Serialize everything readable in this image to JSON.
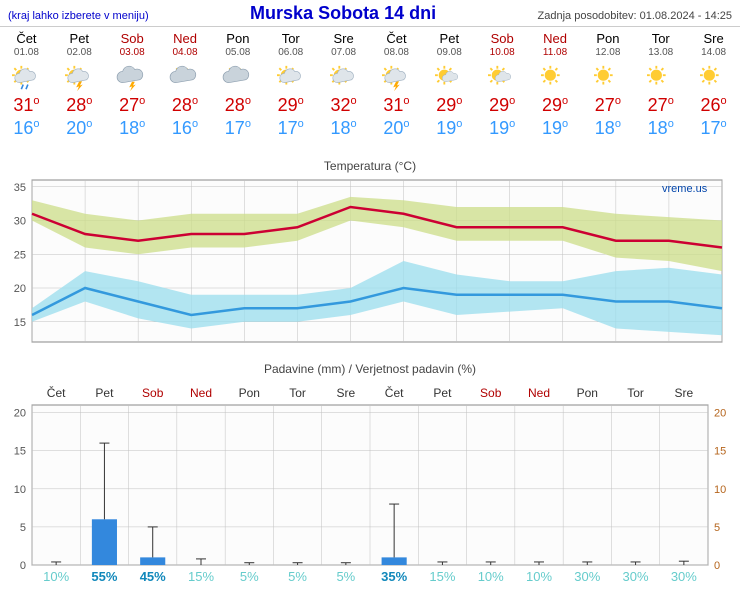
{
  "header": {
    "menu_hint": "(kraj lahko izberete v meniju)",
    "title": "Murska Sobota 14 dni",
    "updated": "Zadnja posodobitev: 01.08.2024 - 14:25"
  },
  "colors": {
    "blue_link": "#0000cc",
    "high_temp": "#d00000",
    "low_temp": "#3399ff",
    "weekend": "#b00000",
    "chart_bg": "#fcfcfc",
    "grid": "#c0c0c0",
    "temp_high_line": "#cc0033",
    "temp_high_band": "#ccdd88",
    "temp_low_line": "#3399dd",
    "temp_low_band": "#99ddee",
    "precip_bar": "#3388dd",
    "precip_axis_right": "#b5651d",
    "prob_text": "#66cccc",
    "prob_text_strong": "#1188bb"
  },
  "days": [
    {
      "name": "Čet",
      "date": "01.08",
      "weekend": false,
      "icon": "sun-cloud-rain",
      "high": 31,
      "low": 16,
      "precip_mm": 0,
      "precip_err": 0.4,
      "prob": 10
    },
    {
      "name": "Pet",
      "date": "02.08",
      "weekend": false,
      "icon": "sun-storm",
      "high": 28,
      "low": 20,
      "precip_mm": 6,
      "precip_err": 10,
      "prob": 55
    },
    {
      "name": "Sob",
      "date": "03.08",
      "weekend": true,
      "icon": "cloud-storm",
      "high": 27,
      "low": 18,
      "precip_mm": 1,
      "precip_err": 4,
      "prob": 45
    },
    {
      "name": "Ned",
      "date": "04.08",
      "weekend": true,
      "icon": "cloud-sun",
      "high": 28,
      "low": 16,
      "precip_mm": 0,
      "precip_err": 0.8,
      "prob": 15
    },
    {
      "name": "Pon",
      "date": "05.08",
      "weekend": false,
      "icon": "cloud-sun",
      "high": 28,
      "low": 17,
      "precip_mm": 0,
      "precip_err": 0.3,
      "prob": 5
    },
    {
      "name": "Tor",
      "date": "06.08",
      "weekend": false,
      "icon": "sun-cloud",
      "high": 29,
      "low": 17,
      "precip_mm": 0,
      "precip_err": 0.3,
      "prob": 5
    },
    {
      "name": "Sre",
      "date": "07.08",
      "weekend": false,
      "icon": "sun-cloud",
      "high": 32,
      "low": 18,
      "precip_mm": 0,
      "precip_err": 0.3,
      "prob": 5
    },
    {
      "name": "Čet",
      "date": "08.08",
      "weekend": false,
      "icon": "sun-storm",
      "high": 31,
      "low": 20,
      "precip_mm": 1,
      "precip_err": 7,
      "prob": 35
    },
    {
      "name": "Pet",
      "date": "09.08",
      "weekend": false,
      "icon": "sun-small-cloud",
      "high": 29,
      "low": 19,
      "precip_mm": 0,
      "precip_err": 0.4,
      "prob": 15
    },
    {
      "name": "Sob",
      "date": "10.08",
      "weekend": true,
      "icon": "sun-small-cloud",
      "high": 29,
      "low": 19,
      "precip_mm": 0,
      "precip_err": 0.4,
      "prob": 10
    },
    {
      "name": "Ned",
      "date": "11.08",
      "weekend": true,
      "icon": "sun",
      "high": 29,
      "low": 19,
      "precip_mm": 0,
      "precip_err": 0.4,
      "prob": 10
    },
    {
      "name": "Pon",
      "date": "12.08",
      "weekend": false,
      "icon": "sun",
      "high": 27,
      "low": 18,
      "precip_mm": 0,
      "precip_err": 0.4,
      "prob": 30
    },
    {
      "name": "Tor",
      "date": "13.08",
      "weekend": false,
      "icon": "sun",
      "high": 27,
      "low": 18,
      "precip_mm": 0,
      "precip_err": 0.4,
      "prob": 30
    },
    {
      "name": "Sre",
      "date": "14.08",
      "weekend": false,
      "icon": "sun",
      "high": 26,
      "low": 17,
      "precip_mm": 0,
      "precip_err": 0.5,
      "prob": 30
    }
  ],
  "temp_chart": {
    "title": "Temperatura (°C)",
    "watermark": "vreme.us",
    "ylim": [
      12,
      36
    ],
    "yticks": [
      15,
      20,
      25,
      30,
      35
    ],
    "high_band_hi": [
      33,
      31,
      30,
      31,
      31,
      31,
      33.5,
      33,
      32,
      32,
      32,
      31,
      30.5,
      30
    ],
    "high_band_lo": [
      30,
      26,
      25,
      26,
      26,
      27,
      30,
      29,
      27,
      27,
      27,
      24.5,
      24,
      22.5
    ],
    "high_line": [
      31,
      28,
      27,
      28,
      28,
      29,
      32,
      31,
      29,
      29,
      29,
      27,
      27,
      26
    ],
    "low_band_hi": [
      17,
      22.5,
      21,
      19,
      19,
      19,
      20,
      24,
      22,
      21,
      21,
      22.5,
      23,
      22
    ],
    "low_band_lo": [
      15,
      18,
      15.5,
      14,
      15,
      15,
      16,
      18,
      16,
      16.5,
      17,
      14,
      13.5,
      13
    ],
    "low_line": [
      16,
      20,
      18,
      16,
      17,
      17,
      18,
      20,
      19,
      19,
      19,
      18,
      18,
      17
    ]
  },
  "precip_chart": {
    "title": "Padavine (mm) / Verjetnost padavin (%)",
    "ylim": [
      0,
      21
    ],
    "yticks": [
      0,
      5,
      10,
      15,
      20
    ]
  }
}
